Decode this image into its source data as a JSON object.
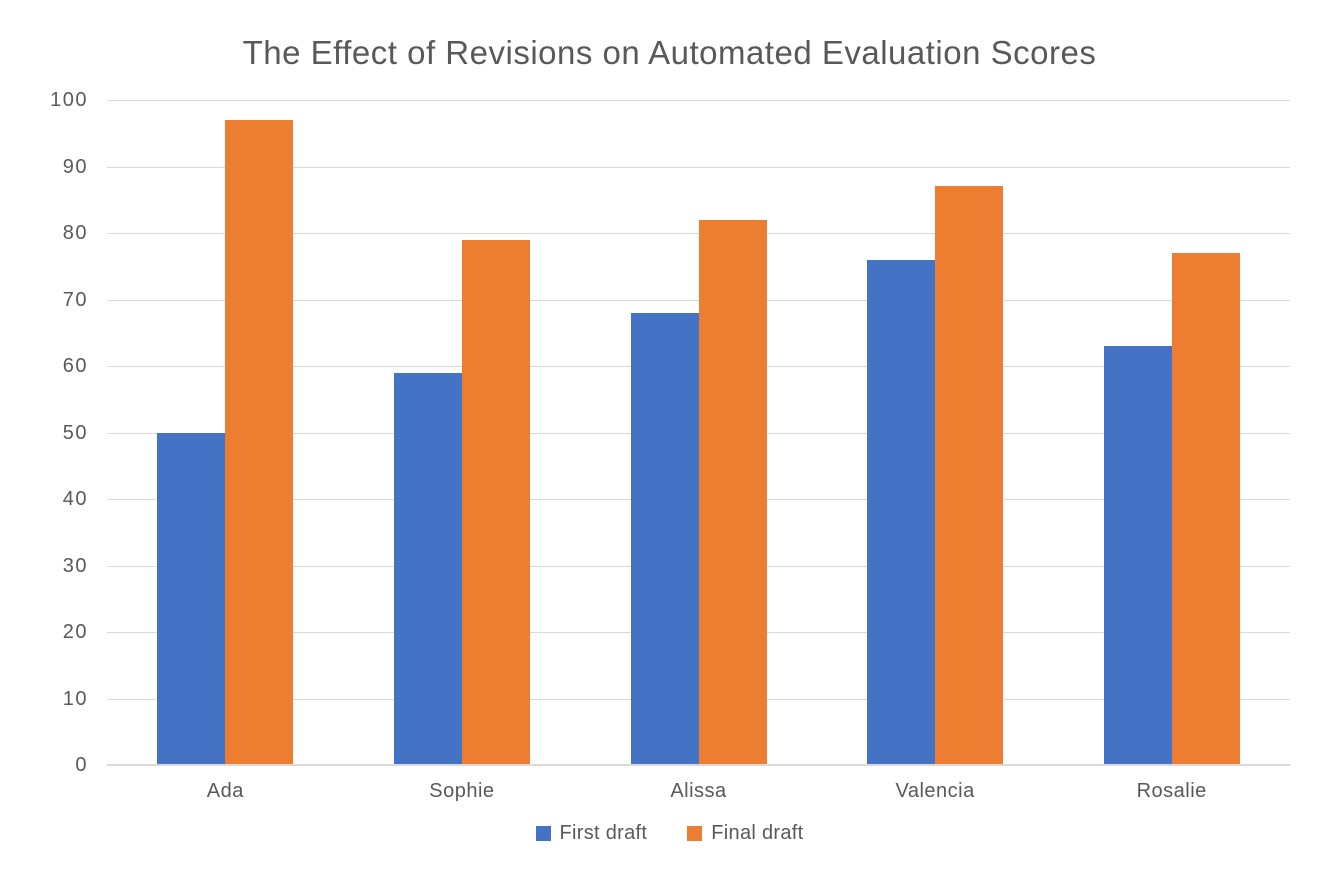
{
  "chart_data": {
    "type": "bar",
    "title": "The Effect of Revisions on Automated Evaluation Scores",
    "categories": [
      "Ada",
      "Sophie",
      "Alissa",
      "Valencia",
      "Rosalie"
    ],
    "series": [
      {
        "name": "First draft",
        "color": "#4472C4",
        "values": [
          50,
          59,
          68,
          76,
          63
        ]
      },
      {
        "name": "Final draft",
        "color": "#ED7D31",
        "values": [
          97,
          79,
          82,
          87,
          77
        ]
      }
    ],
    "xlabel": "",
    "ylabel": "",
    "ylim": [
      0,
      100
    ],
    "ytick_step": 10,
    "grid": true,
    "legend_position": "bottom"
  },
  "style": {
    "background": "#FFFFFF",
    "grid_color": "#D9D9D9",
    "baseline_color": "#D9D9D9",
    "text_color": "#595959"
  }
}
